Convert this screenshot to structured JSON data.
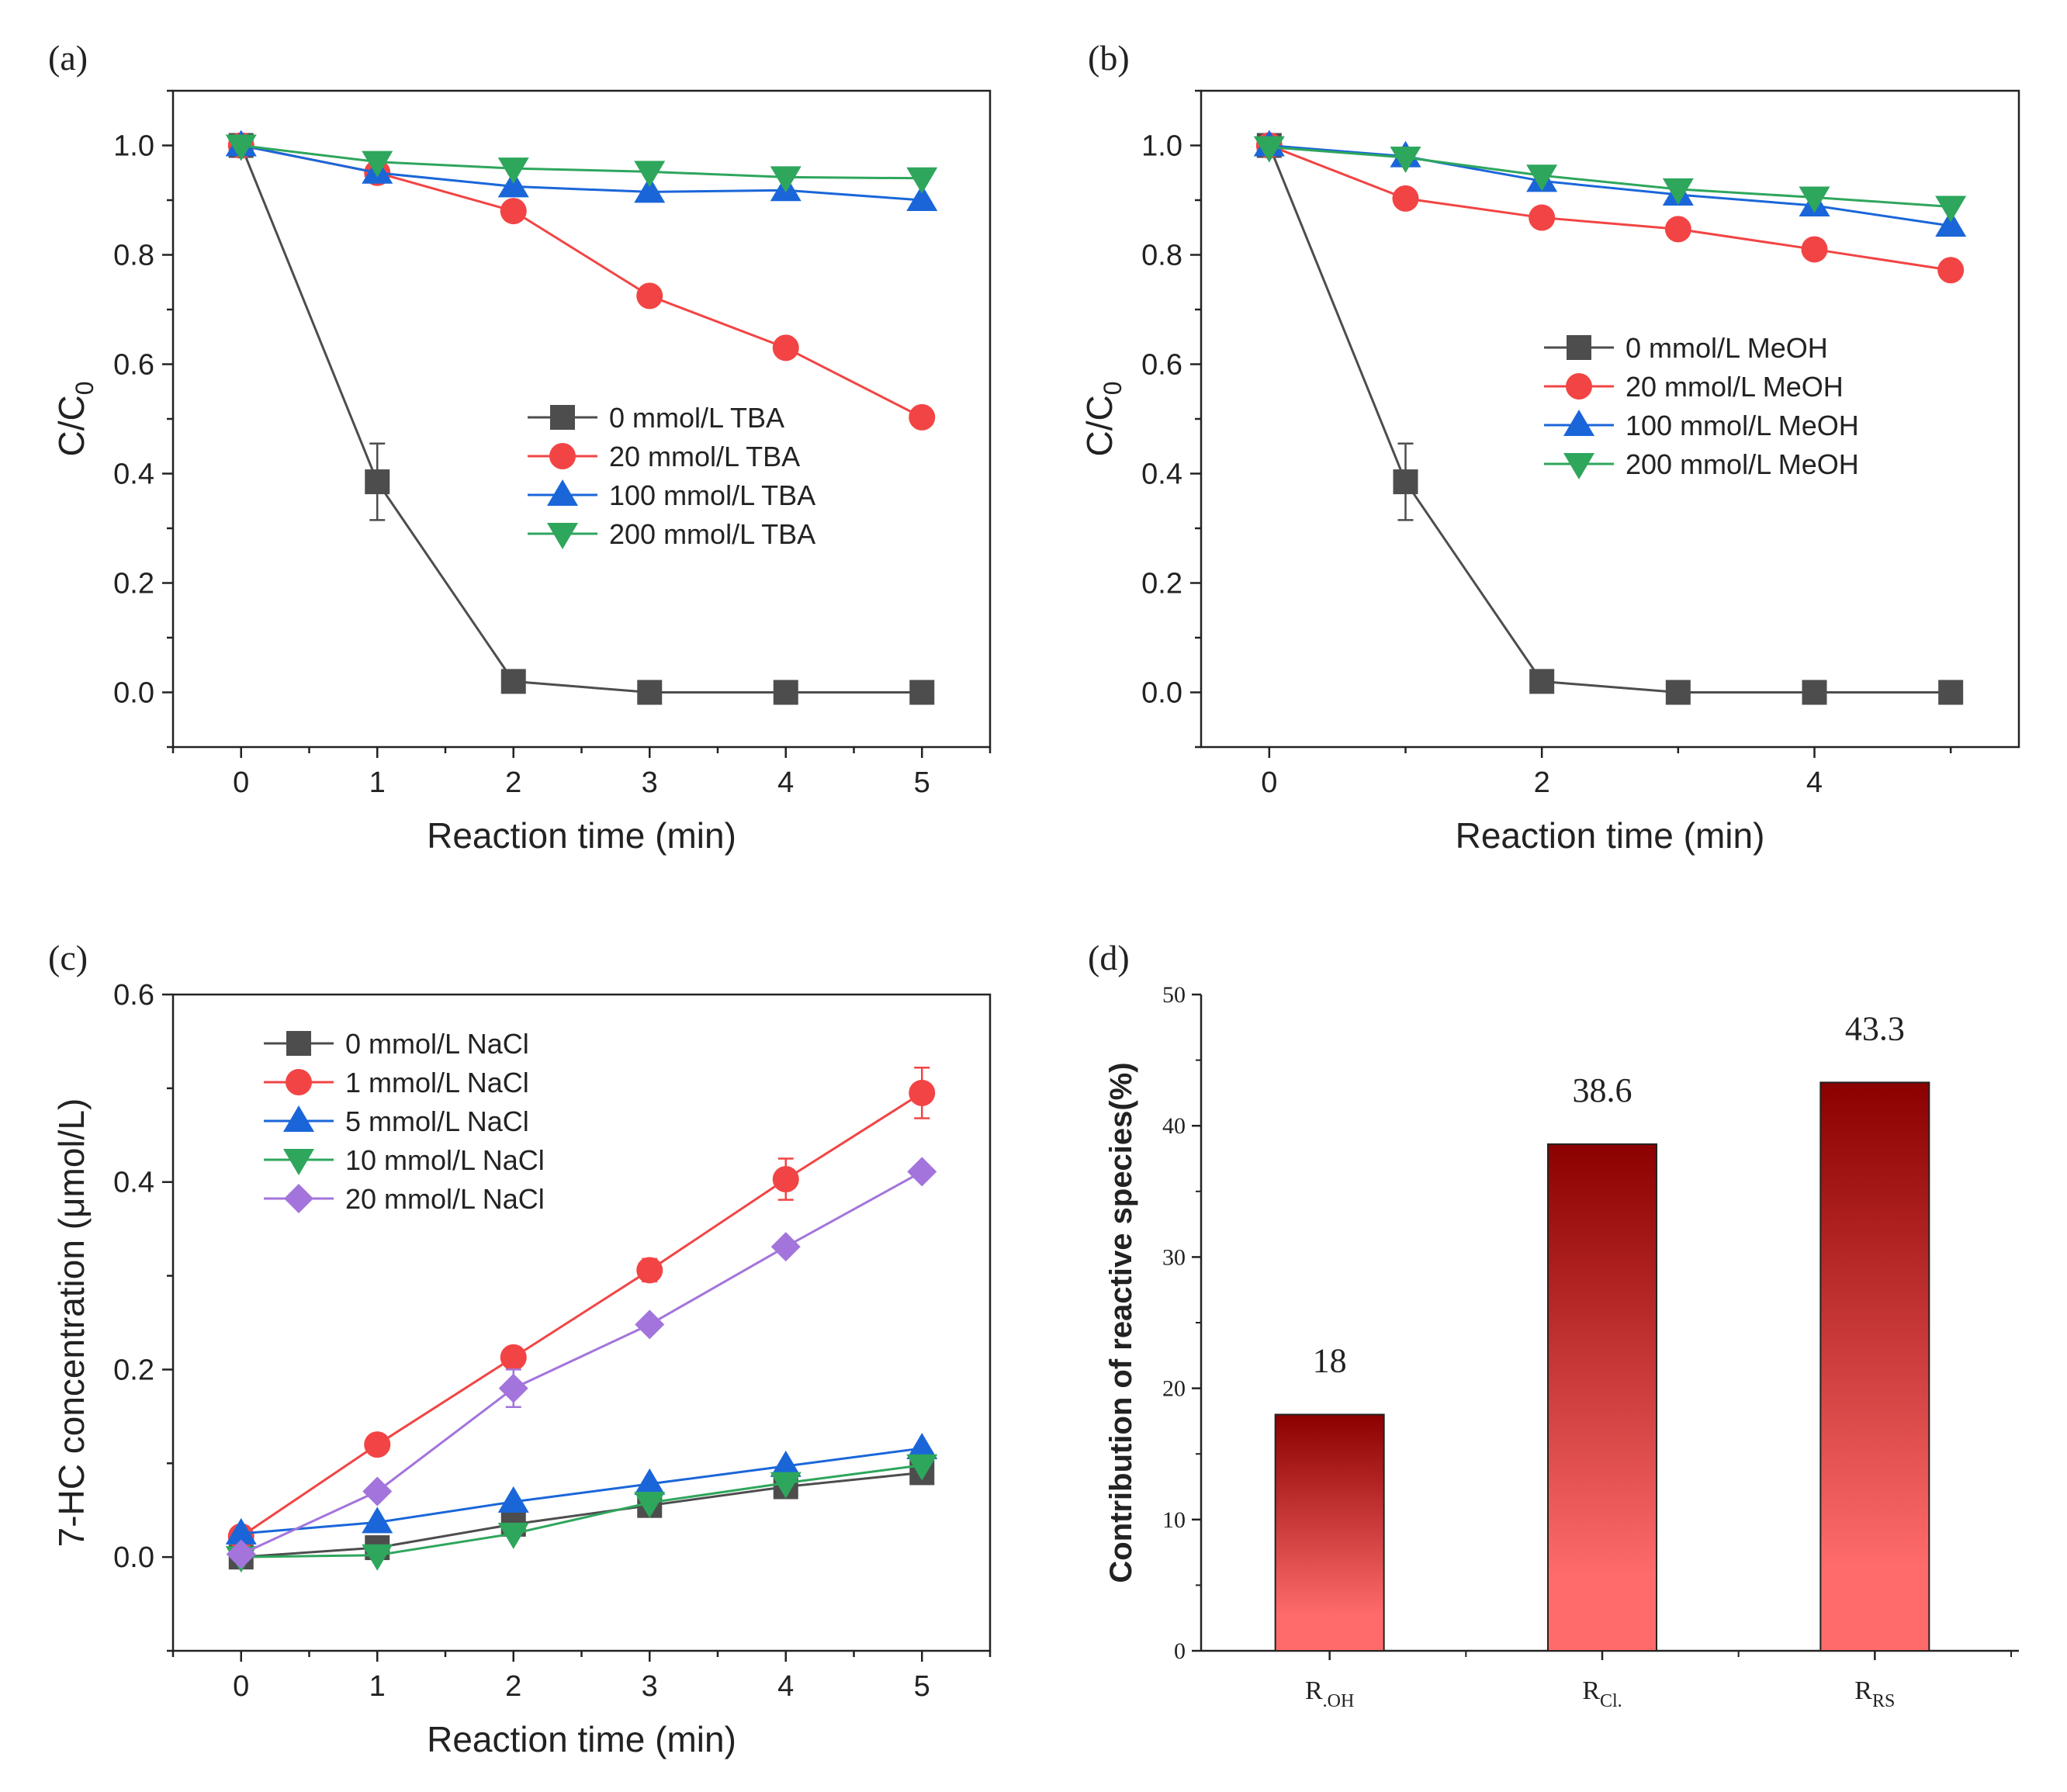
{
  "colors": {
    "s0": "#4d4d4d",
    "s1": "#f24444",
    "s2": "#1a66d9",
    "s3": "#2ea65c",
    "s4": "#a374db",
    "bar_top": "#8b0000",
    "bar_bottom": "#ff6b6b"
  },
  "chart_data": [
    {
      "id": "a",
      "panel_label": "(a)",
      "type": "line",
      "xlabel": "Reaction time (min)",
      "ylabel": "C/C",
      "ylabel_sub": "0",
      "xlim": [
        -0.5,
        5.5
      ],
      "ylim": [
        -0.1,
        1.1
      ],
      "xticks": [
        0,
        1,
        2,
        3,
        4,
        5
      ],
      "xtick_labels": [
        "0",
        "1",
        "2",
        "3",
        "4",
        "5"
      ],
      "yticks": [
        0.0,
        0.2,
        0.4,
        0.6,
        0.8,
        1.0
      ],
      "ytick_labels": [
        "0.0",
        "0.2",
        "0.4",
        "0.6",
        "0.8",
        "1.0"
      ],
      "legend_position": "center-right",
      "x": [
        0,
        1,
        2,
        3,
        4,
        5
      ],
      "series": [
        {
          "name": "0 mmol/L TBA",
          "marker": "square",
          "values": [
            1.0,
            0.385,
            0.02,
            0.0,
            0.0,
            0.0
          ],
          "errors": [
            0,
            0.07,
            0,
            0,
            0,
            0
          ]
        },
        {
          "name": "20 mmol/L TBA",
          "marker": "circle",
          "values": [
            1.0,
            0.95,
            0.88,
            0.725,
            0.63,
            0.503
          ],
          "errors": [
            0,
            0,
            0,
            0,
            0,
            0
          ]
        },
        {
          "name": "100 mmol/L TBA",
          "marker": "triangle-up",
          "values": [
            1.0,
            0.95,
            0.925,
            0.915,
            0.918,
            0.9
          ],
          "errors": [
            0,
            0,
            0,
            0,
            0,
            0
          ]
        },
        {
          "name": "200 mmol/L TBA",
          "marker": "triangle-down",
          "values": [
            1.0,
            0.97,
            0.958,
            0.952,
            0.942,
            0.94
          ],
          "errors": [
            0,
            0,
            0,
            0,
            0,
            0
          ]
        }
      ]
    },
    {
      "id": "b",
      "panel_label": "(b)",
      "type": "line",
      "xlabel": "Reaction time (min)",
      "ylabel": "C/C",
      "ylabel_sub": "0",
      "xlim": [
        -0.5,
        5.5
      ],
      "ylim": [
        -0.1,
        1.1
      ],
      "xticks": [
        0,
        2,
        4
      ],
      "xtick_labels": [
        "0",
        "2",
        "4"
      ],
      "yticks": [
        0.0,
        0.2,
        0.4,
        0.6,
        0.8,
        1.0
      ],
      "ytick_labels": [
        "0.0",
        "0.2",
        "0.4",
        "0.6",
        "0.8",
        "1.0"
      ],
      "legend_position": "center-right",
      "x": [
        0,
        1,
        2,
        3,
        4,
        5
      ],
      "series": [
        {
          "name": "0 mmol/L MeOH",
          "marker": "square",
          "values": [
            1.0,
            0.385,
            0.02,
            0.0,
            0.0,
            0.0
          ],
          "errors": [
            0,
            0.07,
            0,
            0,
            0,
            0
          ]
        },
        {
          "name": "20 mmol/L MeOH",
          "marker": "circle",
          "values": [
            1.0,
            0.903,
            0.868,
            0.847,
            0.81,
            0.772
          ],
          "errors": [
            0,
            0,
            0,
            0,
            0,
            0
          ]
        },
        {
          "name": "100 mmol/L MeOH",
          "marker": "triangle-up",
          "values": [
            1.0,
            0.98,
            0.935,
            0.91,
            0.89,
            0.853
          ],
          "errors": [
            0,
            0,
            0,
            0,
            0,
            0
          ]
        },
        {
          "name": "200 mmol/L MeOH",
          "marker": "triangle-down",
          "values": [
            0.997,
            0.978,
            0.945,
            0.92,
            0.905,
            0.888
          ],
          "errors": [
            0,
            0,
            0,
            0,
            0,
            0
          ]
        }
      ]
    },
    {
      "id": "c",
      "panel_label": "(c)",
      "type": "line",
      "xlabel": "Reaction time (min)",
      "ylabel": "7-HC concentration (μmol/L)",
      "xlim": [
        -0.5,
        5.5
      ],
      "ylim": [
        -0.1,
        0.6
      ],
      "xticks": [
        0,
        1,
        2,
        3,
        4,
        5
      ],
      "xtick_labels": [
        "0",
        "1",
        "2",
        "3",
        "4",
        "5"
      ],
      "yticks": [
        0.0,
        0.2,
        0.4,
        0.6
      ],
      "ytick_labels": [
        "0.0",
        "0.2",
        "0.4",
        "0.6"
      ],
      "legend_position": "top-left",
      "x": [
        0,
        1,
        2,
        3,
        4,
        5
      ],
      "series": [
        {
          "name": "0 mmol/L NaCl",
          "marker": "square",
          "values": [
            0.0,
            0.01,
            0.035,
            0.055,
            0.075,
            0.09
          ],
          "errors": [
            0,
            0,
            0,
            0.007,
            0.012,
            0.012
          ]
        },
        {
          "name": "1 mmol/L NaCl",
          "marker": "circle",
          "values": [
            0.022,
            0.12,
            0.213,
            0.306,
            0.403,
            0.495
          ],
          "errors": [
            0,
            0,
            0,
            0.012,
            0.022,
            0.027
          ]
        },
        {
          "name": "5 mmol/L NaCl",
          "marker": "triangle-up",
          "values": [
            0.025,
            0.037,
            0.059,
            0.078,
            0.097,
            0.116
          ],
          "errors": [
            0,
            0,
            0,
            0,
            0,
            0
          ]
        },
        {
          "name": "10 mmol/L NaCl",
          "marker": "triangle-down",
          "values": [
            0.0,
            0.002,
            0.025,
            0.058,
            0.079,
            0.098
          ],
          "errors": [
            0,
            0,
            0,
            0,
            0,
            0
          ]
        },
        {
          "name": "20 mmol/L NaCl",
          "marker": "diamond",
          "values": [
            0.003,
            0.07,
            0.18,
            0.248,
            0.331,
            0.411
          ],
          "errors": [
            0,
            0,
            0.02,
            0,
            0,
            0
          ]
        }
      ]
    },
    {
      "id": "d",
      "panel_label": "(d)",
      "type": "bar",
      "ylabel": "Contribution of reactive species(%)",
      "ylim": [
        0,
        50
      ],
      "yticks": [
        0,
        10,
        20,
        30,
        40,
        50
      ],
      "ytick_labels": [
        "0",
        "10",
        "20",
        "30",
        "40",
        "50"
      ],
      "categories": [
        {
          "main": "R",
          "sub": ".OH"
        },
        {
          "main": "R",
          "sub": "Cl."
        },
        {
          "main": "R",
          "sub": "RS"
        }
      ],
      "values": [
        18,
        38.6,
        43.3
      ],
      "value_labels": [
        "18",
        "38.6",
        "43.3"
      ]
    }
  ]
}
